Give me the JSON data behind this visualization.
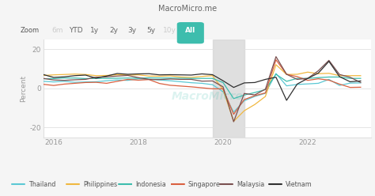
{
  "title": "MacroMicro.me",
  "ylabel": "Percent",
  "ylim": [
    -25,
    25
  ],
  "yticks": [
    -20,
    0,
    20
  ],
  "xlim": [
    2015.75,
    2023.5
  ],
  "xticks": [
    2016,
    2018,
    2020,
    2022
  ],
  "shade_start": 2019.75,
  "shade_end": 2020.5,
  "bg_color": "#f5f5f5",
  "plot_bg": "#ffffff",
  "countries": [
    "Thailand",
    "Philippines",
    "Indonesia",
    "Singapore",
    "Malaysia",
    "Vietnam"
  ],
  "colors": [
    "#5bc8d4",
    "#f0b840",
    "#3dbdad",
    "#d96040",
    "#7a5050",
    "#303030"
  ],
  "zoom_buttons": [
    "6m",
    "YTD",
    "1y",
    "2y",
    "3y",
    "5y",
    "10y",
    "All"
  ],
  "active_button": "All",
  "inactive_gray": [
    "6m",
    "10y"
  ],
  "data": {
    "Thailand": {
      "x": [
        2015.75,
        2016.0,
        2016.25,
        2016.5,
        2016.75,
        2017.0,
        2017.25,
        2017.5,
        2017.75,
        2018.0,
        2018.25,
        2018.5,
        2018.75,
        2019.0,
        2019.25,
        2019.5,
        2019.75,
        2020.0,
        2020.25,
        2020.5,
        2020.75,
        2021.0,
        2021.25,
        2021.5,
        2021.75,
        2022.0,
        2022.25,
        2022.5,
        2022.75,
        2023.0,
        2023.25
      ],
      "y": [
        3.5,
        3.2,
        3.5,
        3.0,
        3.2,
        3.3,
        3.8,
        4.2,
        4.0,
        4.8,
        4.5,
        4.2,
        3.8,
        3.3,
        2.8,
        2.5,
        1.8,
        -1.8,
        -12.2,
        -6.4,
        -4.2,
        -2.6,
        7.5,
        1.2,
        1.9,
        2.2,
        2.5,
        4.5,
        1.4,
        2.6,
        2.7
      ]
    },
    "Philippines": {
      "x": [
        2015.75,
        2016.0,
        2016.25,
        2016.5,
        2016.75,
        2017.0,
        2017.25,
        2017.5,
        2017.75,
        2018.0,
        2018.25,
        2018.5,
        2018.75,
        2019.0,
        2019.25,
        2019.5,
        2019.75,
        2020.0,
        2020.25,
        2020.5,
        2020.75,
        2021.0,
        2021.25,
        2021.5,
        2021.75,
        2022.0,
        2022.25,
        2022.5,
        2022.75,
        2023.0,
        2023.25
      ],
      "y": [
        6.5,
        6.8,
        7.0,
        7.2,
        7.0,
        6.4,
        6.5,
        6.9,
        6.7,
        6.8,
        6.2,
        6.1,
        6.3,
        5.7,
        5.5,
        6.0,
        6.4,
        -0.7,
        -16.9,
        -11.5,
        -8.3,
        -4.2,
        12.0,
        7.0,
        7.1,
        8.2,
        7.4,
        7.6,
        6.4,
        6.4,
        6.4
      ]
    },
    "Indonesia": {
      "x": [
        2015.75,
        2016.0,
        2016.25,
        2016.5,
        2016.75,
        2017.0,
        2017.25,
        2017.5,
        2017.75,
        2018.0,
        2018.25,
        2018.5,
        2018.75,
        2019.0,
        2019.25,
        2019.5,
        2019.75,
        2020.0,
        2020.25,
        2020.5,
        2020.75,
        2021.0,
        2021.25,
        2021.5,
        2021.75,
        2022.0,
        2022.25,
        2022.5,
        2022.75,
        2023.0,
        2023.25
      ],
      "y": [
        4.8,
        4.9,
        5.2,
        5.2,
        4.9,
        5.0,
        5.0,
        5.1,
        5.2,
        5.1,
        5.3,
        5.2,
        5.2,
        5.1,
        5.0,
        5.0,
        5.0,
        2.9,
        -5.3,
        -3.5,
        -2.2,
        -0.7,
        7.1,
        3.5,
        5.0,
        5.0,
        5.4,
        5.7,
        5.7,
        5.0,
        5.0
      ]
    },
    "Singapore": {
      "x": [
        2015.75,
        2016.0,
        2016.25,
        2016.5,
        2016.75,
        2017.0,
        2017.25,
        2017.5,
        2017.75,
        2018.0,
        2018.25,
        2018.5,
        2018.75,
        2019.0,
        2019.25,
        2019.5,
        2019.75,
        2020.0,
        2020.25,
        2020.5,
        2020.75,
        2021.0,
        2021.25,
        2021.5,
        2021.75,
        2022.0,
        2022.25,
        2022.5,
        2022.75,
        2023.0,
        2023.25
      ],
      "y": [
        2.0,
        1.4,
        2.1,
        2.5,
        2.9,
        3.0,
        2.5,
        3.5,
        4.5,
        4.1,
        4.4,
        2.4,
        1.5,
        1.1,
        0.7,
        0.2,
        -0.3,
        -0.3,
        -13.3,
        -5.8,
        -3.8,
        -2.4,
        14.5,
        7.1,
        5.9,
        4.0,
        4.8,
        4.1,
        2.1,
        0.4,
        0.5
      ]
    },
    "Malaysia": {
      "x": [
        2015.75,
        2016.0,
        2016.25,
        2016.5,
        2016.75,
        2017.0,
        2017.25,
        2017.5,
        2017.75,
        2018.0,
        2018.25,
        2018.5,
        2018.75,
        2019.0,
        2019.25,
        2019.5,
        2019.75,
        2020.0,
        2020.25,
        2020.5,
        2020.75,
        2021.0,
        2021.25,
        2021.5,
        2021.75,
        2022.0,
        2022.25,
        2022.5,
        2022.75,
        2023.0,
        2023.25
      ],
      "y": [
        5.0,
        4.2,
        4.0,
        4.3,
        4.5,
        5.6,
        5.8,
        6.2,
        6.5,
        5.4,
        4.5,
        4.4,
        4.7,
        4.5,
        4.5,
        3.6,
        3.7,
        0.7,
        -17.1,
        -2.7,
        -3.4,
        -0.5,
        16.1,
        7.1,
        4.5,
        5.0,
        8.9,
        14.2,
        7.0,
        5.6,
        2.9
      ]
    },
    "Vietnam": {
      "x": [
        2015.75,
        2016.0,
        2016.25,
        2016.5,
        2016.75,
        2017.0,
        2017.25,
        2017.5,
        2017.75,
        2018.0,
        2018.25,
        2018.5,
        2018.75,
        2019.0,
        2019.25,
        2019.5,
        2019.75,
        2020.0,
        2020.25,
        2020.5,
        2020.75,
        2021.0,
        2021.25,
        2021.5,
        2021.75,
        2022.0,
        2022.25,
        2022.5,
        2022.75,
        2023.0,
        2023.25
      ],
      "y": [
        7.0,
        5.5,
        5.8,
        6.4,
        6.7,
        5.1,
        6.2,
        7.5,
        7.1,
        7.3,
        7.4,
        6.8,
        6.9,
        6.8,
        6.7,
        7.3,
        6.9,
        3.8,
        0.4,
        2.7,
        2.9,
        4.5,
        5.6,
        -6.2,
        2.1,
        5.0,
        7.7,
        13.7,
        5.9,
        3.3,
        3.7
      ]
    }
  }
}
